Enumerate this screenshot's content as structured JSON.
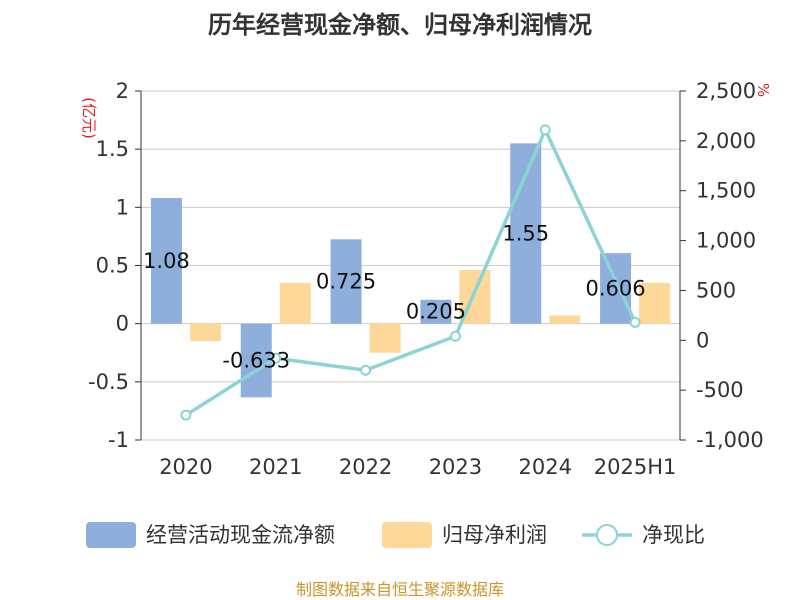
{
  "chart_data": {
    "type": "bar",
    "title": "历年经营现金净额、归母净利润情况",
    "categories": [
      "2020",
      "2021",
      "2022",
      "2023",
      "2024",
      "2025H1"
    ],
    "series": [
      {
        "name": "经营活动现金流净额",
        "kind": "bar",
        "axis": "left",
        "color": "#8eaedc",
        "values": [
          1.08,
          -0.633,
          0.725,
          0.205,
          1.55,
          0.606
        ],
        "labels": [
          "1.08",
          "-0.633",
          "0.725",
          "0.205",
          "1.55",
          "0.606"
        ]
      },
      {
        "name": "归母净利润",
        "kind": "bar",
        "axis": "left",
        "color": "#fdd898",
        "values": [
          -0.15,
          0.35,
          -0.25,
          0.46,
          0.07,
          0.35
        ]
      },
      {
        "name": "净现比",
        "kind": "line",
        "axis": "right",
        "color": "#8dd3d5",
        "values": [
          -750,
          -180,
          -300,
          40,
          2110,
          180
        ]
      }
    ],
    "left_axis": {
      "unit": "(亿元)",
      "min": -1,
      "max": 2,
      "ticks": [
        -1,
        -0.5,
        0,
        0.5,
        1,
        1.5,
        2
      ],
      "tick_labels": [
        "-1",
        "-0.5",
        "0",
        "0.5",
        "1",
        "1.5",
        "2"
      ]
    },
    "right_axis": {
      "unit": "%",
      "min": -1000,
      "max": 2500,
      "ticks": [
        -1000,
        -500,
        0,
        500,
        1000,
        1500,
        2000,
        2500
      ],
      "tick_labels": [
        "-1,000",
        "-500",
        "0",
        "500",
        "1,000",
        "1,500",
        "2,000",
        "2,500"
      ]
    },
    "grid": true,
    "legend_position": "bottom"
  },
  "source": "制图数据来自恒生聚源数据库"
}
